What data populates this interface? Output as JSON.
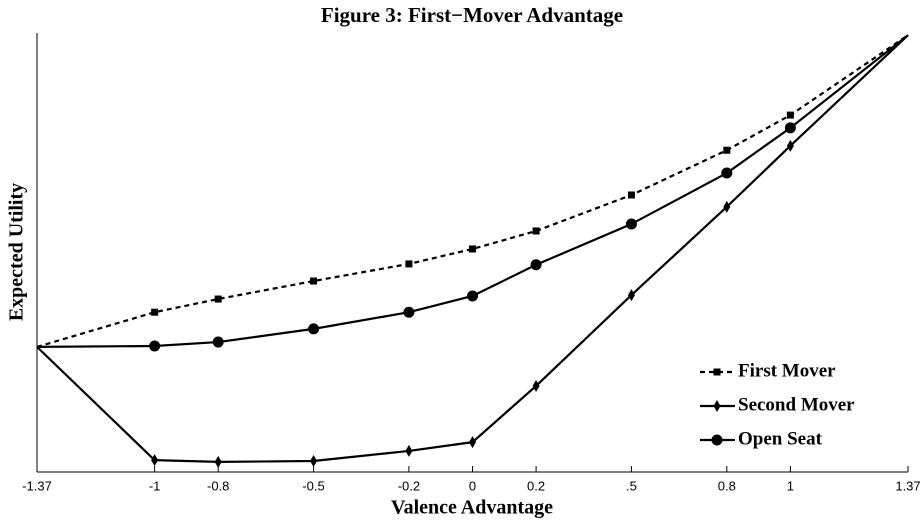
{
  "chart_data": {
    "type": "line",
    "title": "Figure 3: First−Mover Advantage",
    "x_label": "Valence Advantage",
    "y_label": "Expected Utility",
    "x": [
      -1.37,
      -1,
      -0.8,
      -0.5,
      -0.2,
      0,
      0.2,
      0.5,
      0.8,
      1,
      1.37
    ],
    "xlim": [
      -1.37,
      1.37
    ],
    "xticks": [
      -1.37,
      -1,
      -0.8,
      -0.5,
      -0.2,
      0,
      0.2,
      {
        "value": 0.5,
        "label": ".5"
      },
      0.8,
      1,
      1.37
    ],
    "ylim": [
      0,
      100
    ],
    "legend": "lower right",
    "series": [
      {
        "name": "First Mover",
        "color": "#000000",
        "dashed": true,
        "marker": "square",
        "values": [
          28.5,
          36.4,
          39.4,
          43.5,
          47.4,
          50.8,
          54.9,
          63.1,
          73.3,
          81.3,
          99.5
        ]
      },
      {
        "name": "Second Mover",
        "color": "#000000",
        "dashed": false,
        "marker": "diamond",
        "values": [
          28.5,
          2.7,
          2.3,
          2.5,
          4.8,
          6.8,
          19.6,
          40.3,
          60.4,
          74.3,
          99.5
        ]
      },
      {
        "name": "Open Seat",
        "color": "#000000",
        "dashed": false,
        "marker": "circle",
        "values": [
          28.5,
          28.7,
          29.6,
          32.6,
          36.4,
          40.1,
          47.2,
          56.5,
          68.1,
          78.4,
          99.5
        ]
      }
    ]
  }
}
